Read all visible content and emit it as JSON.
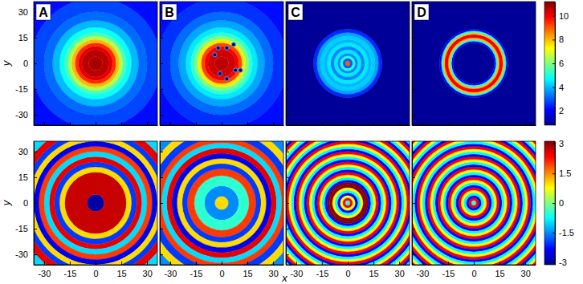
{
  "chart_data": {
    "type": "heatmap",
    "x_label": "x",
    "xlim": [
      -36,
      36
    ],
    "ylim": [
      -36,
      36
    ],
    "xticks": [
      -30,
      -15,
      0,
      15,
      30
    ],
    "yticks": [
      -30,
      -15,
      0,
      15,
      30
    ],
    "rows": [
      {
        "y_label": "y",
        "colorbar": {
          "lim": [
            0.8,
            11.2
          ],
          "ticks": [
            2,
            4,
            6,
            8,
            10
          ]
        },
        "panels": [
          {
            "label": "A",
            "r": [
              0,
              4,
              8,
              10,
              12,
              14,
              16,
              18,
              21,
              25,
              30,
              38,
              52
            ],
            "values": [
              10.8,
              10.6,
              10.2,
              9.5,
              8,
              6.5,
              5.5,
              4.8,
              4,
              3.2,
              2.8,
              2.2
            ]
          },
          {
            "label": "B",
            "r": [
              0,
              4,
              8,
              10,
              12,
              14,
              16,
              18,
              21,
              25,
              30,
              38,
              52
            ],
            "values": [
              10.6,
              10.4,
              10,
              9.2,
              7.5,
              6,
              5.2,
              4.5,
              3.8,
              3.2,
              2.6,
              2.2
            ],
            "vortices": {
              "x": [
                -4,
                -2,
                3,
                7,
                -1,
                3,
                8,
                11
              ],
              "y": [
                5,
                9,
                9,
                11,
                -6,
                -9,
                -4,
                -4
              ],
              "value": 0.8
            }
          },
          {
            "label": "C",
            "r": [
              0,
              1.5,
              3,
              4.5,
              6,
              8,
              10,
              12,
              14,
              16,
              18,
              20,
              52
            ],
            "values": [
              9,
              3,
              5,
              3.5,
              4.5,
              3.5,
              4.5,
              4,
              4.2,
              3.8,
              2.5,
              0.9
            ]
          },
          {
            "label": "D",
            "r": [
              0,
              12,
              13,
              14,
              15,
              17,
              18,
              19,
              20,
              52
            ],
            "values": [
              0.9,
              2,
              5,
              8,
              10,
              8,
              5,
              2,
              0.9
            ]
          }
        ]
      },
      {
        "y_label": "y",
        "colorbar": {
          "lim": [
            -3.14,
            3.14
          ],
          "ticks": [
            -3,
            -1.5,
            0,
            1.5,
            3
          ]
        },
        "panels": [
          {
            "r": [
              0,
              5,
              18,
              21,
              24,
              27,
              30,
              33,
              36,
              39,
              42,
              46,
              52
            ],
            "values": [
              -3,
              2.7,
              1,
              -2,
              2.5,
              -1,
              2,
              -2.5,
              1,
              -2,
              2.5,
              -1
            ]
          },
          {
            "r": [
              0,
              4,
              10,
              16,
              20,
              23,
              26,
              29,
              32,
              35,
              38,
              42,
              46,
              52
            ],
            "values": [
              1,
              -1.5,
              -0.5,
              2,
              -2,
              1,
              -2.5,
              2.5,
              -1,
              2,
              -2,
              1,
              -1.5
            ]
          },
          {
            "r": [
              0,
              1.5,
              3,
              4.5,
              6,
              7.5,
              9,
              10.5,
              12,
              13.5,
              15,
              16.5,
              18,
              19.5,
              21,
              22.5,
              24,
              25.5,
              27,
              28.5,
              30,
              31.5,
              33,
              34.5,
              36,
              37.5,
              39,
              40.5,
              42,
              43.5,
              45,
              46.5,
              48,
              49.5,
              51,
              52.5,
              54
            ],
            "values": [
              -0.5,
              2.4,
              0.8,
              -2.4,
              -0.8,
              0.8,
              3.1,
              3.1,
              -2.4,
              -0.8,
              0.8,
              2.4,
              -2.4,
              -0.8,
              0.8,
              2.4,
              -2.4,
              -0.8,
              0.8,
              2.4,
              -2.4,
              -0.8,
              0.8,
              2.4,
              -2.4,
              -0.8,
              0.8,
              2.4,
              -2.4,
              -0.8,
              0.8,
              2.4,
              -2.4,
              -0.8,
              0.8,
              2.4
            ]
          },
          {
            "r": [
              0,
              1.5,
              3,
              4.5,
              6,
              7.5,
              9,
              10.5,
              12,
              13.5,
              15,
              16.5,
              18,
              19.5,
              21,
              22.5,
              24,
              25.5,
              27,
              28.5,
              30,
              31.5,
              33,
              34.5,
              36,
              37.5,
              39,
              40.5,
              42,
              43.5,
              45,
              46.5,
              48,
              49.5,
              51,
              52.5,
              54
            ],
            "values": [
              -0.5,
              2.4,
              -2.4,
              -0.8,
              0.8,
              2.4,
              -2.4,
              -0.8,
              0.8,
              2.4,
              -2.4,
              -0.8,
              0.8,
              2.4,
              -2.4,
              -0.8,
              0.8,
              2.4,
              -2.4,
              -0.8,
              0.8,
              2.4,
              -2.4,
              -0.8,
              0.8,
              2.4,
              -2.4,
              -0.8,
              0.8,
              2.4,
              -2.4,
              -0.8,
              0.8,
              2.4,
              -2.4,
              -0.8
            ]
          }
        ]
      }
    ]
  }
}
